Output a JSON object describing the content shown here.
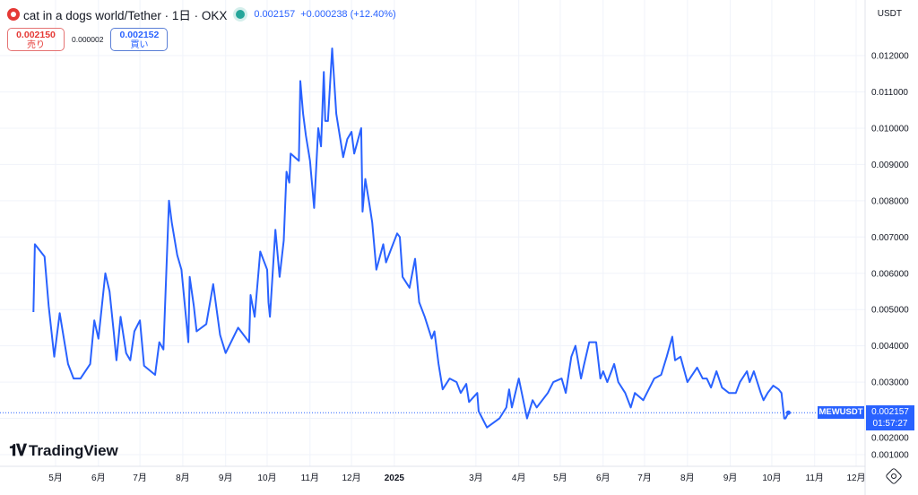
{
  "header": {
    "symbol_title": "cat in a dogs world/Tether · 1日 · OKX",
    "last_price": "0.002157",
    "change": "+0.000238 (+12.40%)",
    "status": "market-open"
  },
  "trade": {
    "sell_price": "0.002150",
    "sell_label": "売り",
    "spread": "0.000002",
    "buy_price": "0.002152",
    "buy_label": "買い"
  },
  "currency_label": "USDT",
  "symbol_tag": "MEWUSDT",
  "price_tag": {
    "price": "0.002157",
    "countdown": "01:57:27"
  },
  "brand": "TradingView",
  "colors": {
    "line": "#2962ff",
    "grid": "#f0f3fa",
    "accent": "#2962ff"
  },
  "chart_data": {
    "type": "line",
    "title": "",
    "xlabel": "",
    "ylabel": "",
    "ylim": [
      0.0007,
      0.0125
    ],
    "grid": true,
    "yticks": [
      "0.001000",
      "0.002000",
      "0.003000",
      "0.004000",
      "0.005000",
      "0.006000",
      "0.007000",
      "0.008000",
      "0.009000",
      "0.010000",
      "0.011000",
      "0.012000"
    ],
    "xticks": [
      {
        "label": "5月",
        "date": "2024-05-01"
      },
      {
        "label": "6月",
        "date": "2024-06-01"
      },
      {
        "label": "7月",
        "date": "2024-07-01"
      },
      {
        "label": "8月",
        "date": "2024-08-01"
      },
      {
        "label": "9月",
        "date": "2024-09-01"
      },
      {
        "label": "10月",
        "date": "2024-10-01"
      },
      {
        "label": "11月",
        "date": "2024-11-01"
      },
      {
        "label": "12月",
        "date": "2024-12-01"
      },
      {
        "label": "2025",
        "date": "2025-01-01"
      },
      {
        "label": "3月",
        "date": "2025-03-01"
      },
      {
        "label": "4月",
        "date": "2025-04-01"
      },
      {
        "label": "5月",
        "date": "2025-05-01"
      },
      {
        "label": "6月",
        "date": "2025-06-01"
      },
      {
        "label": "7月",
        "date": "2025-07-01"
      },
      {
        "label": "8月",
        "date": "2025-08-01"
      },
      {
        "label": "9月",
        "date": "2025-09-01"
      },
      {
        "label": "10月",
        "date": "2025-10-01"
      },
      {
        "label": "11月",
        "date": "2025-11-01"
      },
      {
        "label": "12月",
        "date": "2025-12-01"
      }
    ],
    "current_price": 0.002157,
    "x": [
      "2024-04-15",
      "2024-04-16",
      "2024-04-23",
      "2024-04-26",
      "2024-04-30",
      "2024-05-04",
      "2024-05-10",
      "2024-05-14",
      "2024-05-19",
      "2024-05-26",
      "2024-05-29",
      "2024-06-01",
      "2024-06-06",
      "2024-06-09",
      "2024-06-12",
      "2024-06-14",
      "2024-06-17",
      "2024-06-21",
      "2024-06-24",
      "2024-06-27",
      "2024-07-01",
      "2024-07-04",
      "2024-07-12",
      "2024-07-15",
      "2024-07-18",
      "2024-07-22",
      "2024-07-24",
      "2024-07-28",
      "2024-07-31",
      "2024-08-05",
      "2024-08-06",
      "2024-08-09",
      "2024-08-11",
      "2024-08-18",
      "2024-08-23",
      "2024-08-28",
      "2024-09-01",
      "2024-09-10",
      "2024-09-18",
      "2024-09-19",
      "2024-09-22",
      "2024-09-26",
      "2024-10-01",
      "2024-10-02",
      "2024-10-03",
      "2024-10-07",
      "2024-10-10",
      "2024-10-13",
      "2024-10-15",
      "2024-10-17",
      "2024-10-18",
      "2024-10-24",
      "2024-10-25",
      "2024-10-27",
      "2024-10-29",
      "2024-11-01",
      "2024-11-04",
      "2024-11-07",
      "2024-11-09",
      "2024-11-11",
      "2024-11-12",
      "2024-11-14",
      "2024-11-17",
      "2024-11-20",
      "2024-11-25",
      "2024-11-28",
      "2024-12-01",
      "2024-12-03",
      "2024-12-08",
      "2024-12-09",
      "2024-12-11",
      "2024-12-14",
      "2024-12-16",
      "2024-12-19",
      "2024-12-24",
      "2024-12-26",
      "2024-12-30",
      "2025-01-03",
      "2025-01-05",
      "2025-01-07",
      "2025-01-12",
      "2025-01-16",
      "2025-01-19",
      "2025-01-23",
      "2025-01-28",
      "2025-01-30",
      "2025-02-02",
      "2025-02-05",
      "2025-02-10",
      "2025-02-15",
      "2025-02-18",
      "2025-02-22",
      "2025-02-24",
      "2025-03-02",
      "2025-03-03",
      "2025-03-09",
      "2025-03-18",
      "2025-03-23",
      "2025-03-25",
      "2025-03-27",
      "2025-04-01",
      "2025-04-07",
      "2025-04-11",
      "2025-04-14",
      "2025-04-22",
      "2025-04-26",
      "2025-05-02",
      "2025-05-05",
      "2025-05-09",
      "2025-05-12",
      "2025-05-16",
      "2025-05-18",
      "2025-05-22",
      "2025-05-27",
      "2025-05-30",
      "2025-06-01",
      "2025-06-04",
      "2025-06-09",
      "2025-06-12",
      "2025-06-17",
      "2025-06-21",
      "2025-06-24",
      "2025-06-30",
      "2025-07-08",
      "2025-07-13",
      "2025-07-17",
      "2025-07-21",
      "2025-07-23",
      "2025-07-27",
      "2025-08-01",
      "2025-08-08",
      "2025-08-12",
      "2025-08-15",
      "2025-08-18",
      "2025-08-22",
      "2025-08-26",
      "2025-08-31",
      "2025-09-05",
      "2025-09-08",
      "2025-09-13",
      "2025-09-15",
      "2025-09-18",
      "2025-09-23",
      "2025-09-25",
      "2025-09-28",
      "2025-10-02",
      "2025-10-06",
      "2025-10-08",
      "2025-10-10",
      "2025-10-11",
      "2025-10-13"
    ],
    "values": [
      0.00493,
      0.0068,
      0.00646,
      0.0051,
      0.0037,
      0.0049,
      0.0035,
      0.0031,
      0.0031,
      0.0035,
      0.0047,
      0.0042,
      0.006,
      0.0055,
      0.0044,
      0.0036,
      0.0048,
      0.0038,
      0.0036,
      0.0044,
      0.0047,
      0.00345,
      0.0032,
      0.0041,
      0.0039,
      0.008,
      0.0074,
      0.0065,
      0.0061,
      0.0041,
      0.0059,
      0.0051,
      0.0044,
      0.0046,
      0.0057,
      0.0043,
      0.0038,
      0.0045,
      0.0041,
      0.0054,
      0.0048,
      0.0066,
      0.0061,
      0.0052,
      0.0048,
      0.0072,
      0.0059,
      0.0069,
      0.0088,
      0.0085,
      0.0093,
      0.0091,
      0.0113,
      0.0104,
      0.0098,
      0.0091,
      0.0078,
      0.01,
      0.0095,
      0.01155,
      0.0102,
      0.0102,
      0.0122,
      0.0104,
      0.0092,
      0.0097,
      0.0099,
      0.0093,
      0.01,
      0.0077,
      0.0086,
      0.0079,
      0.0074,
      0.0061,
      0.0068,
      0.0063,
      0.0067,
      0.0071,
      0.007,
      0.0059,
      0.0056,
      0.0064,
      0.0052,
      0.0048,
      0.0042,
      0.0044,
      0.0035,
      0.0028,
      0.0031,
      0.003,
      0.0027,
      0.00295,
      0.00245,
      0.0027,
      0.0022,
      0.00175,
      0.002,
      0.0023,
      0.0028,
      0.0023,
      0.0031,
      0.002,
      0.0025,
      0.0023,
      0.0027,
      0.003,
      0.0031,
      0.0027,
      0.0037,
      0.004,
      0.0031,
      0.00345,
      0.0041,
      0.0041,
      0.0031,
      0.0033,
      0.003,
      0.0035,
      0.003,
      0.0027,
      0.0023,
      0.0027,
      0.0025,
      0.0031,
      0.0032,
      0.0037,
      0.00425,
      0.0036,
      0.0037,
      0.003,
      0.0034,
      0.0031,
      0.0031,
      0.00285,
      0.0033,
      0.00285,
      0.0027,
      0.0027,
      0.003,
      0.0033,
      0.003,
      0.0033,
      0.0027,
      0.0025,
      0.0027,
      0.0029,
      0.0028,
      0.0027,
      0.002,
      0.002,
      0.002157
    ]
  }
}
